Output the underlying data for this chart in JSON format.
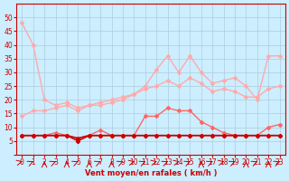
{
  "x": [
    0,
    1,
    2,
    3,
    4,
    5,
    6,
    7,
    8,
    9,
    10,
    11,
    12,
    13,
    14,
    15,
    16,
    17,
    18,
    19,
    20,
    21,
    22,
    23
  ],
  "series": [
    {
      "name": "rafales_max",
      "color": "#ffaaaa",
      "lw": 1.0,
      "marker": "D",
      "ms": 2,
      "values": [
        48,
        40,
        20,
        18,
        19,
        17,
        18,
        18,
        19,
        20,
        22,
        25,
        31,
        36,
        30,
        36,
        30,
        26,
        27,
        28,
        25,
        20,
        36,
        36
      ]
    },
    {
      "name": "rafales_moy",
      "color": "#ffaaaa",
      "lw": 1.0,
      "marker": "D",
      "ms": 2,
      "values": [
        14,
        16,
        16,
        17,
        18,
        16,
        18,
        19,
        20,
        21,
        22,
        24,
        25,
        27,
        25,
        28,
        26,
        23,
        24,
        23,
        21,
        21,
        24,
        25
      ]
    },
    {
      "name": "vent_max",
      "color": "#ff6666",
      "lw": 1.0,
      "marker": "D",
      "ms": 2,
      "values": [
        7,
        7,
        7,
        8,
        7,
        5,
        7,
        9,
        7,
        7,
        7,
        14,
        14,
        17,
        16,
        16,
        12,
        10,
        8,
        7,
        7,
        7,
        10,
        11
      ]
    },
    {
      "name": "vent_moy",
      "color": "#cc0000",
      "lw": 1.2,
      "marker": "D",
      "ms": 2,
      "values": [
        7,
        7,
        7,
        7,
        7,
        6,
        7,
        7,
        7,
        7,
        7,
        7,
        7,
        7,
        7,
        7,
        7,
        7,
        7,
        7,
        7,
        7,
        7,
        7
      ]
    },
    {
      "name": "vent_min",
      "color": "#cc0000",
      "lw": 1.0,
      "marker": "D",
      "ms": 2,
      "values": [
        7,
        7,
        7,
        7,
        7,
        5,
        7,
        7,
        7,
        7,
        7,
        7,
        7,
        7,
        7,
        7,
        7,
        7,
        7,
        7,
        7,
        7,
        7,
        7
      ]
    }
  ],
  "wind_arrows": {
    "x": [
      0,
      1,
      2,
      3,
      4,
      5,
      6,
      7,
      8,
      9,
      10,
      11,
      12,
      13,
      14,
      15,
      16,
      17,
      18,
      19,
      20,
      21,
      22,
      23
    ],
    "angles_deg": [
      45,
      30,
      0,
      30,
      0,
      30,
      0,
      30,
      0,
      30,
      45,
      30,
      45,
      30,
      45,
      30,
      0,
      30,
      45,
      30,
      0,
      30,
      0,
      30
    ]
  },
  "xlabel": "Vent moyen/en rafales ( km/h )",
  "ylabel": "",
  "ylim": [
    0,
    55
  ],
  "xlim": [
    -0.5,
    23.5
  ],
  "yticks": [
    0,
    5,
    10,
    15,
    20,
    25,
    30,
    35,
    40,
    45,
    50
  ],
  "xticks": [
    0,
    1,
    2,
    3,
    4,
    5,
    6,
    7,
    8,
    9,
    10,
    11,
    12,
    13,
    14,
    15,
    16,
    17,
    18,
    19,
    20,
    21,
    22,
    23
  ],
  "bg_color": "#cceeff",
  "grid_color": "#aaccdd",
  "arrow_color": "#cc0000",
  "xlabel_color": "#cc0000",
  "tick_color": "#cc0000",
  "axis_color": "#cc0000"
}
